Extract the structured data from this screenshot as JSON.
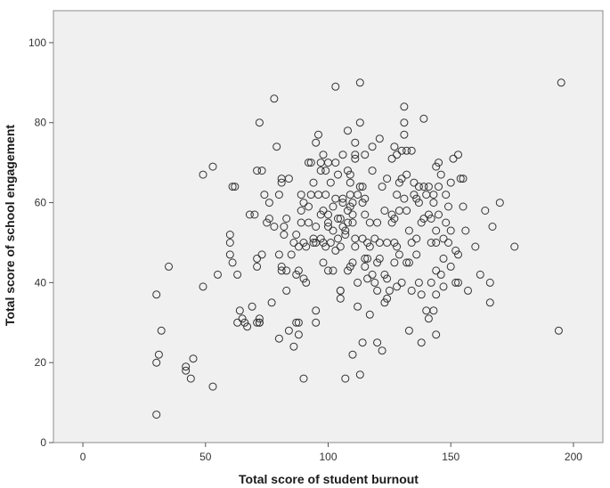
{
  "chart_data": {
    "type": "scatter",
    "title": "",
    "xlabel": "Total score of student burnout",
    "ylabel": "Total score of school engagement",
    "xlim": [
      -12,
      212
    ],
    "ylim": [
      0,
      108
    ],
    "xticks": [
      0,
      50,
      100,
      150,
      200
    ],
    "yticks": [
      0,
      20,
      40,
      60,
      80,
      100
    ],
    "grid": false,
    "legend": "none",
    "colors": {
      "plot_background": "#f0f0f0",
      "marker_stroke": "#333333"
    },
    "series": [
      {
        "marker": "open-circle",
        "points": [
          [
            30,
            7
          ],
          [
            30,
            20
          ],
          [
            30,
            37
          ],
          [
            31,
            22
          ],
          [
            32,
            28
          ],
          [
            35,
            44
          ],
          [
            42,
            19
          ],
          [
            42,
            18
          ],
          [
            44,
            16
          ],
          [
            45,
            21
          ],
          [
            49,
            39
          ],
          [
            49,
            67
          ],
          [
            53,
            69
          ],
          [
            53,
            14
          ],
          [
            55,
            42
          ],
          [
            60,
            50
          ],
          [
            60,
            52
          ],
          [
            60,
            47
          ],
          [
            61,
            45
          ],
          [
            61,
            64
          ],
          [
            62,
            64
          ],
          [
            63,
            30
          ],
          [
            63,
            42
          ],
          [
            64,
            33
          ],
          [
            65,
            31
          ],
          [
            66,
            30
          ],
          [
            67,
            29
          ],
          [
            68,
            57
          ],
          [
            69,
            34
          ],
          [
            70,
            57
          ],
          [
            71,
            30
          ],
          [
            71,
            44
          ],
          [
            71,
            46
          ],
          [
            71,
            68
          ],
          [
            72,
            80
          ],
          [
            72,
            31
          ],
          [
            72,
            30
          ],
          [
            72,
            30
          ],
          [
            73,
            68
          ],
          [
            73,
            47
          ],
          [
            74,
            62
          ],
          [
            75,
            55
          ],
          [
            76,
            60
          ],
          [
            76,
            56
          ],
          [
            77,
            35
          ],
          [
            78,
            54
          ],
          [
            78,
            86
          ],
          [
            79,
            74
          ],
          [
            80,
            62
          ],
          [
            80,
            47
          ],
          [
            80,
            26
          ],
          [
            81,
            44
          ],
          [
            81,
            43
          ],
          [
            81,
            65
          ],
          [
            81,
            66
          ],
          [
            82,
            54
          ],
          [
            82,
            52
          ],
          [
            83,
            56
          ],
          [
            83,
            43
          ],
          [
            83,
            38
          ],
          [
            84,
            28
          ],
          [
            84,
            66
          ],
          [
            85,
            47
          ],
          [
            86,
            24
          ],
          [
            86,
            50
          ],
          [
            87,
            30
          ],
          [
            87,
            52
          ],
          [
            87,
            42
          ],
          [
            88,
            30
          ],
          [
            88,
            49
          ],
          [
            88,
            43
          ],
          [
            88,
            27
          ],
          [
            89,
            58
          ],
          [
            89,
            55
          ],
          [
            89,
            62
          ],
          [
            90,
            16
          ],
          [
            90,
            60
          ],
          [
            90,
            41
          ],
          [
            90,
            50
          ],
          [
            91,
            40
          ],
          [
            91,
            49
          ],
          [
            92,
            55
          ],
          [
            92,
            59
          ],
          [
            92,
            70
          ],
          [
            93,
            70
          ],
          [
            93,
            62
          ],
          [
            94,
            65
          ],
          [
            94,
            51
          ],
          [
            94,
            50
          ],
          [
            95,
            50
          ],
          [
            95,
            33
          ],
          [
            95,
            30
          ],
          [
            95,
            75
          ],
          [
            95,
            54
          ],
          [
            96,
            62
          ],
          [
            96,
            77
          ],
          [
            97,
            70
          ],
          [
            97,
            68
          ],
          [
            97,
            51
          ],
          [
            97,
            57
          ],
          [
            98,
            50
          ],
          [
            98,
            72
          ],
          [
            98,
            45
          ],
          [
            98,
            58
          ],
          [
            99,
            68
          ],
          [
            99,
            62
          ],
          [
            99,
            49
          ],
          [
            100,
            43
          ],
          [
            100,
            55
          ],
          [
            100,
            54
          ],
          [
            100,
            70
          ],
          [
            100,
            57
          ],
          [
            101,
            65
          ],
          [
            101,
            50
          ],
          [
            102,
            59
          ],
          [
            102,
            53
          ],
          [
            102,
            43
          ],
          [
            103,
            89
          ],
          [
            103,
            70
          ],
          [
            103,
            48
          ],
          [
            103,
            61
          ],
          [
            104,
            56
          ],
          [
            104,
            51
          ],
          [
            104,
            67
          ],
          [
            105,
            49
          ],
          [
            105,
            38
          ],
          [
            105,
            38
          ],
          [
            105,
            36
          ],
          [
            105,
            56
          ],
          [
            106,
            72
          ],
          [
            106,
            60
          ],
          [
            106,
            54
          ],
          [
            106,
            61
          ],
          [
            107,
            53
          ],
          [
            107,
            52
          ],
          [
            107,
            16
          ],
          [
            108,
            78
          ],
          [
            108,
            68
          ],
          [
            108,
            58
          ],
          [
            108,
            55
          ],
          [
            108,
            43
          ],
          [
            109,
            59
          ],
          [
            109,
            62
          ],
          [
            109,
            67
          ],
          [
            109,
            65
          ],
          [
            109,
            44
          ],
          [
            110,
            60
          ],
          [
            110,
            57
          ],
          [
            110,
            22
          ],
          [
            110,
            45
          ],
          [
            110,
            55
          ],
          [
            111,
            75
          ],
          [
            111,
            51
          ],
          [
            111,
            49
          ],
          [
            111,
            71
          ],
          [
            111,
            72
          ],
          [
            112,
            62
          ],
          [
            112,
            40
          ],
          [
            112,
            34
          ],
          [
            113,
            17
          ],
          [
            113,
            90
          ],
          [
            113,
            80
          ],
          [
            113,
            64
          ],
          [
            114,
            60
          ],
          [
            114,
            25
          ],
          [
            114,
            64
          ],
          [
            114,
            51
          ],
          [
            115,
            57
          ],
          [
            115,
            61
          ],
          [
            115,
            72
          ],
          [
            115,
            44
          ],
          [
            115,
            46
          ],
          [
            116,
            50
          ],
          [
            116,
            41
          ],
          [
            116,
            46
          ],
          [
            117,
            49
          ],
          [
            117,
            55
          ],
          [
            117,
            32
          ],
          [
            118,
            74
          ],
          [
            118,
            68
          ],
          [
            118,
            42
          ],
          [
            119,
            51
          ],
          [
            119,
            40
          ],
          [
            120,
            55
          ],
          [
            120,
            25
          ],
          [
            120,
            45
          ],
          [
            120,
            38
          ],
          [
            121,
            76
          ],
          [
            121,
            50
          ],
          [
            121,
            46
          ],
          [
            122,
            23
          ],
          [
            122,
            64
          ],
          [
            123,
            35
          ],
          [
            123,
            42
          ],
          [
            123,
            58
          ],
          [
            124,
            66
          ],
          [
            124,
            41
          ],
          [
            124,
            50
          ],
          [
            124,
            36
          ],
          [
            125,
            38
          ],
          [
            126,
            71
          ],
          [
            126,
            55
          ],
          [
            126,
            57
          ],
          [
            127,
            74
          ],
          [
            127,
            56
          ],
          [
            127,
            50
          ],
          [
            127,
            45
          ],
          [
            128,
            49
          ],
          [
            128,
            72
          ],
          [
            128,
            39
          ],
          [
            128,
            62
          ],
          [
            129,
            65
          ],
          [
            129,
            47
          ],
          [
            129,
            58
          ],
          [
            130,
            73
          ],
          [
            130,
            40
          ],
          [
            130,
            66
          ],
          [
            131,
            84
          ],
          [
            131,
            77
          ],
          [
            131,
            80
          ],
          [
            131,
            61
          ],
          [
            132,
            73
          ],
          [
            132,
            58
          ],
          [
            132,
            45
          ],
          [
            132,
            67
          ],
          [
            133,
            28
          ],
          [
            133,
            53
          ],
          [
            133,
            45
          ],
          [
            134,
            50
          ],
          [
            134,
            38
          ],
          [
            134,
            73
          ],
          [
            135,
            62
          ],
          [
            135,
            65
          ],
          [
            136,
            61
          ],
          [
            136,
            51
          ],
          [
            136,
            47
          ],
          [
            137,
            60
          ],
          [
            137,
            64
          ],
          [
            137,
            40
          ],
          [
            138,
            37
          ],
          [
            138,
            25
          ],
          [
            138,
            55
          ],
          [
            139,
            81
          ],
          [
            139,
            64
          ],
          [
            139,
            56
          ],
          [
            140,
            33
          ],
          [
            140,
            62
          ],
          [
            141,
            31
          ],
          [
            141,
            64
          ],
          [
            141,
            57
          ],
          [
            142,
            40
          ],
          [
            142,
            56
          ],
          [
            142,
            50
          ],
          [
            143,
            33
          ],
          [
            143,
            60
          ],
          [
            143,
            62
          ],
          [
            144,
            50
          ],
          [
            144,
            53
          ],
          [
            144,
            27
          ],
          [
            144,
            43
          ],
          [
            144,
            37
          ],
          [
            144,
            69
          ],
          [
            145,
            57
          ],
          [
            145,
            70
          ],
          [
            145,
            64
          ],
          [
            146,
            67
          ],
          [
            146,
            42
          ],
          [
            147,
            51
          ],
          [
            147,
            39
          ],
          [
            147,
            46
          ],
          [
            148,
            62
          ],
          [
            148,
            55
          ],
          [
            149,
            50
          ],
          [
            149,
            59
          ],
          [
            150,
            65
          ],
          [
            150,
            53
          ],
          [
            150,
            44
          ],
          [
            151,
            71
          ],
          [
            152,
            40
          ],
          [
            152,
            48
          ],
          [
            153,
            72
          ],
          [
            153,
            47
          ],
          [
            153,
            40
          ],
          [
            154,
            66
          ],
          [
            155,
            66
          ],
          [
            155,
            59
          ],
          [
            156,
            53
          ],
          [
            157,
            38
          ],
          [
            160,
            49
          ],
          [
            162,
            42
          ],
          [
            164,
            58
          ],
          [
            166,
            35
          ],
          [
            166,
            40
          ],
          [
            167,
            54
          ],
          [
            170,
            60
          ],
          [
            176,
            49
          ],
          [
            194,
            28
          ],
          [
            195,
            90
          ]
        ]
      }
    ]
  }
}
